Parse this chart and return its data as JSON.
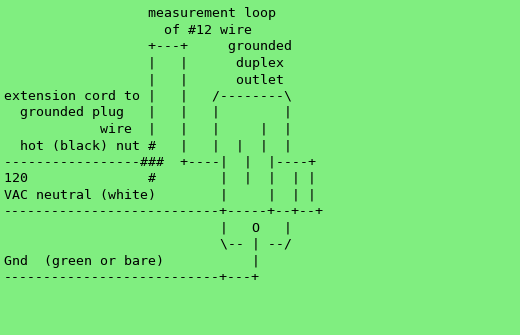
{
  "background_color": "#80ee80",
  "text_color": "#000000",
  "font_family": "monospace",
  "font_size": 9.5,
  "figsize": [
    5.2,
    3.35
  ],
  "dpi": 100,
  "content": "                  measurement loop\n                    of #12 wire\n                  +---+     grounded\n                  |   |      duplex\n                  |   |      outlet\nextension cord to |   |   /--------\\\n  grounded plug   |   |   |        |\n            wire  |   |   |     |  |\n  hot (black) nut #   |   |  |  |  |\n-----------------###  +----|  |  |----+\n120               #        |  |  |  | |\nVAC neutral (white)        |     |  | |\n---------------------------+-----+--+--+\n                           |   O   |\n                           \\-- | --/\nGnd  (green or bare)           |\n---------------------------+---+"
}
